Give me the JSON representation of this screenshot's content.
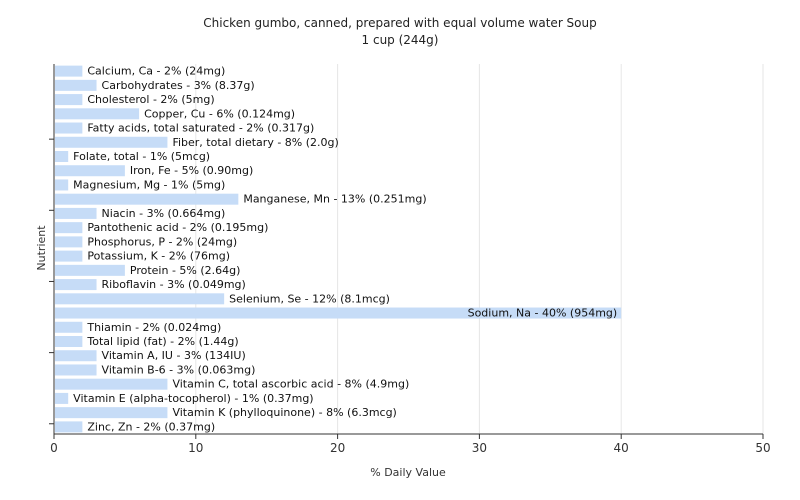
{
  "chart_data": {
    "type": "bar",
    "orientation": "horizontal",
    "title": "Chicken gumbo, canned, prepared with equal volume water Soup",
    "subtitle": "1 cup (244g)",
    "xlabel": "% Daily Value",
    "ylabel": "Nutrient",
    "xlim": [
      0,
      50
    ],
    "xticks": [
      0,
      10,
      20,
      30,
      40,
      50
    ],
    "grid": true,
    "legend": "none",
    "bar_color": "#c6dcf7",
    "categories": [
      "Calcium, Ca - 2% (24mg)",
      "Carbohydrates - 3% (8.37g)",
      "Cholesterol - 2% (5mg)",
      "Copper, Cu - 6% (0.124mg)",
      "Fatty acids, total saturated - 2% (0.317g)",
      "Fiber, total dietary - 8% (2.0g)",
      "Folate, total - 1% (5mcg)",
      "Iron, Fe - 5% (0.90mg)",
      "Magnesium, Mg - 1% (5mg)",
      "Manganese, Mn - 13% (0.251mg)",
      "Niacin - 3% (0.664mg)",
      "Pantothenic acid - 2% (0.195mg)",
      "Phosphorus, P - 2% (24mg)",
      "Potassium, K - 2% (76mg)",
      "Protein - 5% (2.64g)",
      "Riboflavin - 3% (0.049mg)",
      "Selenium, Se - 12% (8.1mcg)",
      "Sodium, Na - 40% (954mg)",
      "Thiamin - 2% (0.024mg)",
      "Total lipid (fat) - 2% (1.44g)",
      "Vitamin A, IU - 3% (134IU)",
      "Vitamin B-6 - 3% (0.063mg)",
      "Vitamin C, total ascorbic acid - 8% (4.9mg)",
      "Vitamin E (alpha-tocopherol) - 1% (0.37mg)",
      "Vitamin K (phylloquinone) - 8% (6.3mcg)",
      "Zinc, Zn - 2% (0.37mg)"
    ],
    "values": [
      2,
      3,
      2,
      6,
      2,
      8,
      1,
      5,
      1,
      13,
      3,
      2,
      2,
      2,
      5,
      3,
      12,
      40,
      2,
      2,
      3,
      3,
      8,
      1,
      8,
      2
    ]
  }
}
